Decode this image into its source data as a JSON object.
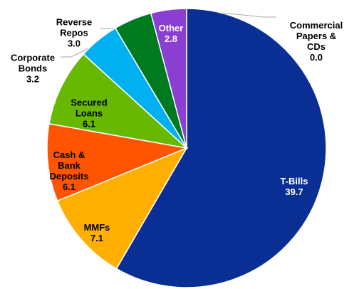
{
  "chart_data": {
    "type": "pie",
    "categories": [
      "T-Bills",
      "MMFs",
      "Cash & Bank Deposits",
      "Secured Loans",
      "Corporate Bonds",
      "Reverse Repos",
      "Other",
      "Commercial Papers & CDs"
    ],
    "values": [
      39.7,
      7.1,
      6.1,
      6.1,
      3.2,
      3.0,
      2.8,
      0.0
    ],
    "value_labels": [
      "39.7",
      "7.1",
      "6.1",
      "6.1",
      "3.2",
      "3.0",
      "2.8",
      "0.0"
    ],
    "colors": [
      "#0a2f94",
      "#ffaf00",
      "#ff5400",
      "#66b800",
      "#00b0f0",
      "#007a1f",
      "#8b3fd2",
      "#bfbfbf"
    ]
  }
}
